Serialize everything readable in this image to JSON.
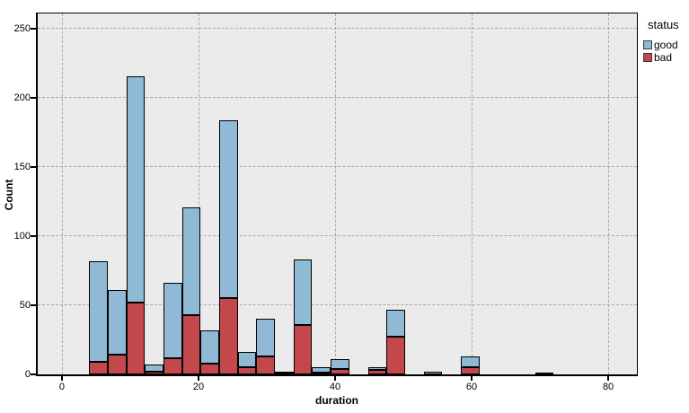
{
  "chart_data": {
    "type": "bar",
    "subtype": "stacked-histogram",
    "title": "",
    "xlabel": "duration",
    "ylabel": "Count",
    "xlim": [
      -3.55,
      84.2
    ],
    "ylim": [
      0,
      261.2
    ],
    "x_ticks": [
      0,
      20,
      40,
      60,
      80
    ],
    "y_ticks": [
      0,
      50,
      100,
      150,
      200,
      250
    ],
    "grid": "dashed",
    "bin_width": 2.72,
    "stack_order_bottom_to_top": [
      "bad",
      "good"
    ],
    "legend": {
      "title": "status",
      "position": "top-right-outside",
      "entries": [
        {
          "label": "good",
          "color": "#8fb9d4"
        },
        {
          "label": "bad",
          "color": "#c2484c"
        }
      ]
    },
    "colors": {
      "plot_background": "#ebebeb",
      "gridline": "#a9a9a9",
      "bar_border": "#000000"
    },
    "bins": [
      {
        "start": 4.0,
        "good": 73,
        "bad": 9
      },
      {
        "start": 6.72,
        "good": 47,
        "bad": 14
      },
      {
        "start": 9.44,
        "good": 164,
        "bad": 52
      },
      {
        "start": 12.16,
        "good": 5,
        "bad": 2
      },
      {
        "start": 14.88,
        "good": 54,
        "bad": 12
      },
      {
        "start": 17.6,
        "good": 78,
        "bad": 43
      },
      {
        "start": 20.32,
        "good": 24,
        "bad": 8
      },
      {
        "start": 23.04,
        "good": 129,
        "bad": 55
      },
      {
        "start": 25.76,
        "good": 11,
        "bad": 5
      },
      {
        "start": 28.48,
        "good": 27,
        "bad": 13
      },
      {
        "start": 31.2,
        "good": 1,
        "bad": 1
      },
      {
        "start": 33.92,
        "good": 47,
        "bad": 36
      },
      {
        "start": 36.64,
        "good": 4,
        "bad": 1
      },
      {
        "start": 39.36,
        "good": 7,
        "bad": 4
      },
      {
        "start": 44.8,
        "good": 2,
        "bad": 3
      },
      {
        "start": 47.52,
        "good": 20,
        "bad": 27
      },
      {
        "start": 52.96,
        "good": 2,
        "bad": 0
      },
      {
        "start": 58.4,
        "good": 8,
        "bad": 5
      },
      {
        "start": 69.28,
        "good": 0,
        "bad": 1
      }
    ]
  }
}
